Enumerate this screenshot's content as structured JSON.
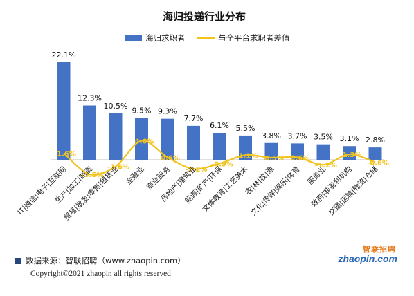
{
  "chart_data": {
    "type": "bar+line",
    "title": "海归投递行业分布",
    "categories": [
      "IT|通信|电子|互联网",
      "生产|加工|制造",
      "贸易|批发|零售|租赁业",
      "金融业",
      "商业服务",
      "房地产|建筑业",
      "能源|矿产|环保",
      "文体教育|工艺美术",
      "农|林|牧|渔",
      "文化|传媒|娱乐|体育",
      "服务业",
      "政府|非盈利机构",
      "交通|运输|物流|仓储"
    ],
    "series": [
      {
        "name": "海归求职者",
        "type": "bar",
        "color": "#4472c4",
        "values": [
          22.1,
          12.3,
          10.5,
          9.5,
          9.3,
          7.7,
          6.1,
          5.5,
          3.8,
          3.7,
          3.5,
          3.1,
          2.8
        ],
        "labels": [
          "22.1%",
          "12.3%",
          "10.5%",
          "9.5%",
          "9.3%",
          "7.7%",
          "6.1%",
          "5.5%",
          "3.8%",
          "3.7%",
          "3.5%",
          "3.1%",
          "2.8%"
        ]
      },
      {
        "name": "与全平台求职者差值",
        "type": "line",
        "smooth": true,
        "color": "#f2c31c",
        "values": [
          1.6,
          -3.5,
          -1.6,
          4.6,
          0.6,
          -2.2,
          -0.9,
          1.1,
          0.5,
          0.6,
          -1.2,
          1.3,
          -0.6
        ],
        "labels": [
          "1.6%",
          "-3.5%",
          "-1.6%",
          "4.6%",
          "0.6%",
          "-2.2%",
          "-0.9%",
          "1.1%",
          "0.5%",
          "0.6%",
          "-1.2%",
          "1.3%",
          "-0.6%"
        ]
      }
    ],
    "legend": "top",
    "grid": false
  },
  "footer": {
    "source": "数据来源：智联招聘（www.zhaopin.com）",
    "copyright": "Copyright©2021 zhaopin all rights reserved"
  },
  "logo": {
    "cn": "智联招聘",
    "en": "zhaopin.com"
  },
  "colors": {
    "bar": "#4472c4",
    "line": "#f2c31c",
    "label_line": "#f2c31c",
    "source_square": "#24477c"
  }
}
